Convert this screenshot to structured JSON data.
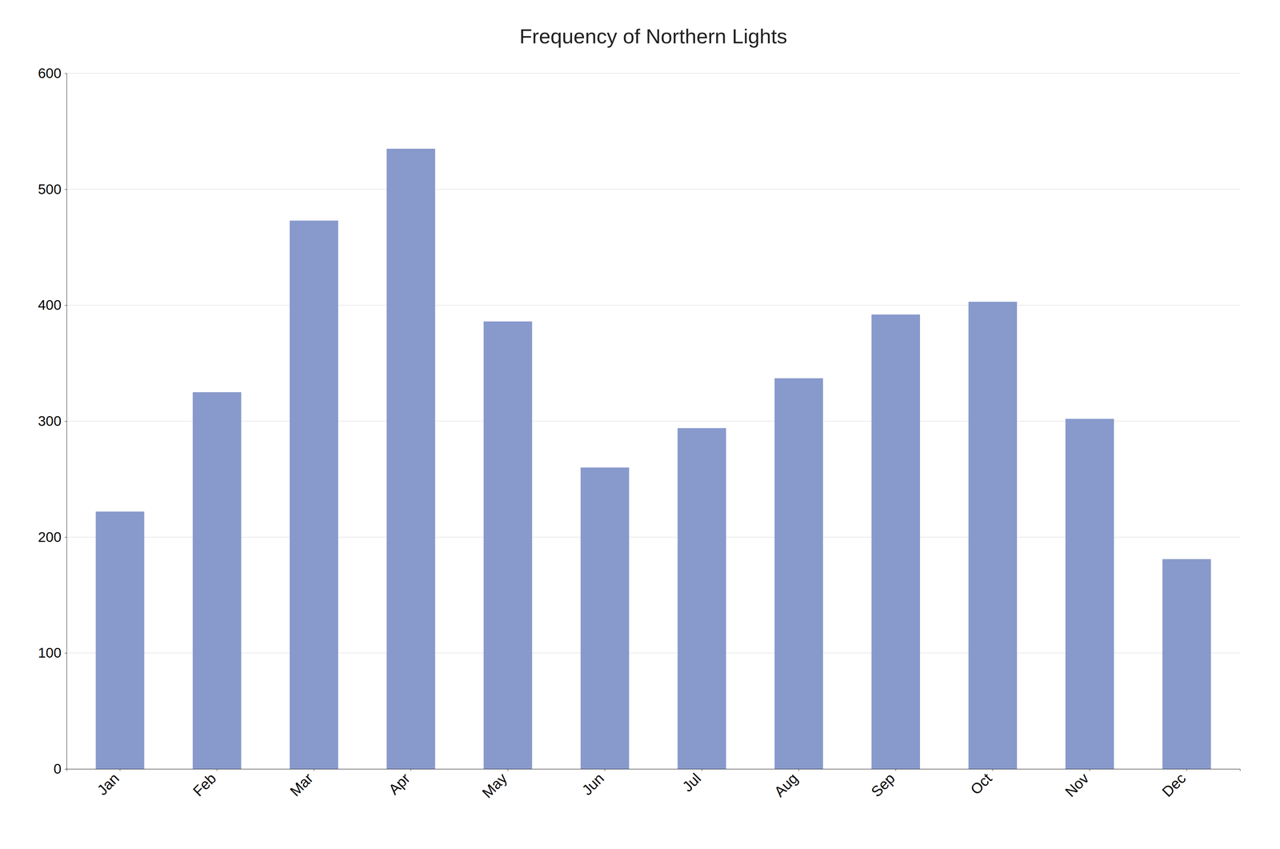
{
  "chart_data": {
    "type": "bar",
    "title": "Frequency of Northern Lights",
    "categories": [
      "Jan",
      "Feb",
      "Mar",
      "Apr",
      "May",
      "Jun",
      "Jul",
      "Aug",
      "Sep",
      "Oct",
      "Nov",
      "Dec"
    ],
    "values": [
      222,
      325,
      473,
      535,
      386,
      260,
      294,
      337,
      392,
      403,
      302,
      181
    ],
    "color": "#8899CC",
    "ylim": [
      0,
      600
    ],
    "yticks": [
      0,
      100,
      200,
      300,
      400,
      500,
      600
    ],
    "grid": true
  }
}
